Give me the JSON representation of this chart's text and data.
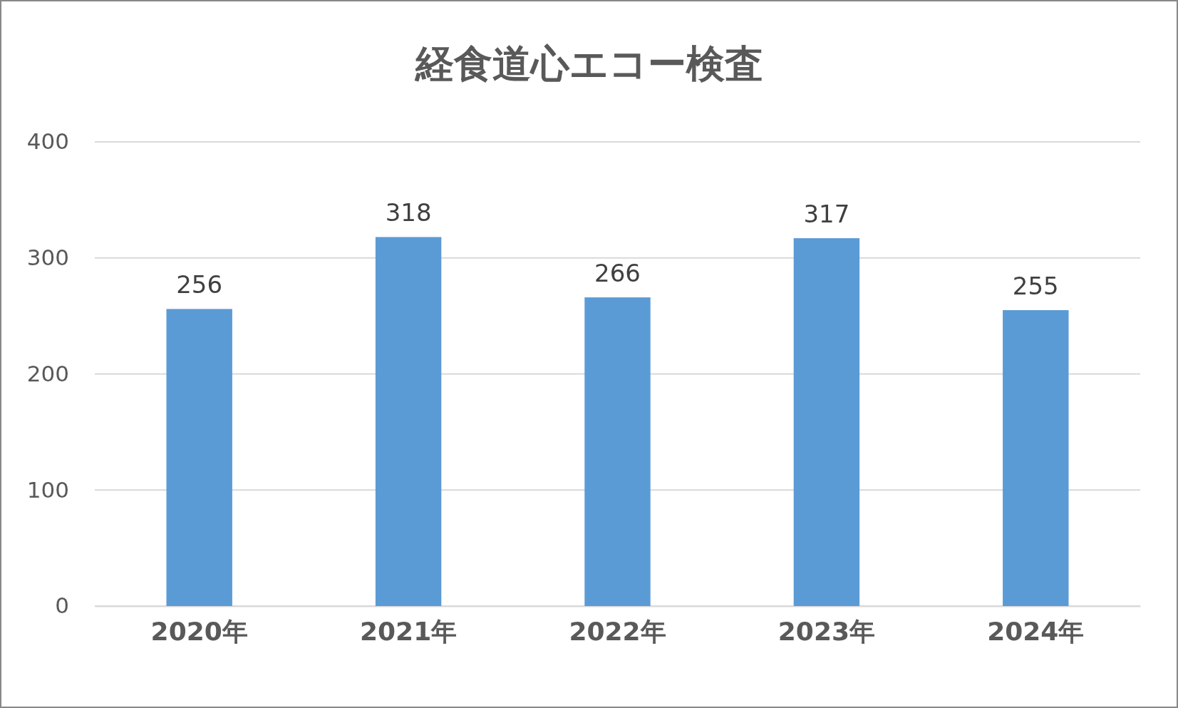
{
  "chart_data": {
    "type": "bar",
    "title": "経食道心エコー検査",
    "categories": [
      "2020年",
      "2021年",
      "2022年",
      "2023年",
      "2024年"
    ],
    "values": [
      256,
      318,
      266,
      317,
      255
    ],
    "color": "#5b9bd5",
    "ylim": [
      0,
      400
    ],
    "yticks": [
      0,
      100,
      200,
      300,
      400
    ],
    "grid": "y",
    "data_labels": true
  }
}
